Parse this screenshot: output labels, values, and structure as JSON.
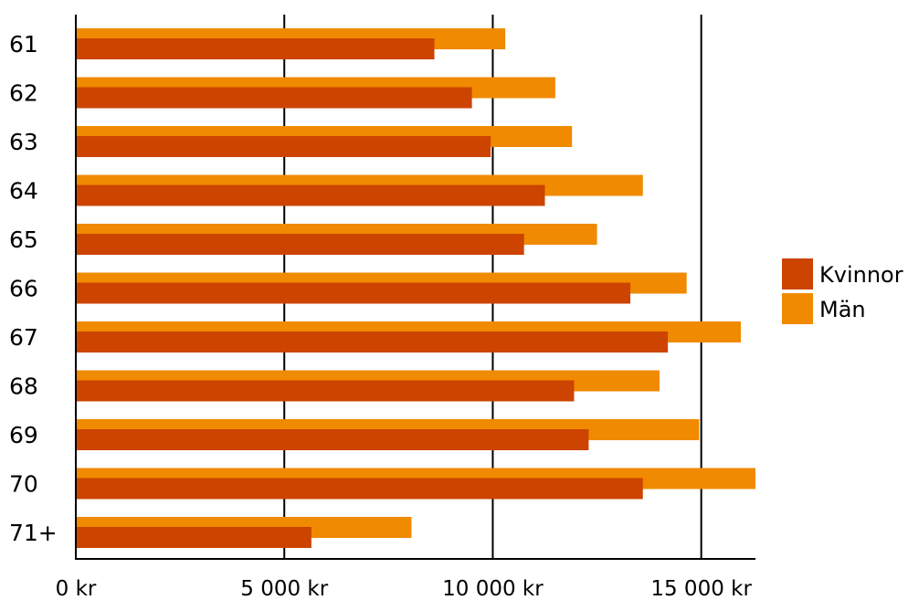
{
  "chart_data": {
    "type": "bar",
    "orientation": "horizontal",
    "categories": [
      "61",
      "62",
      "63",
      "64",
      "65",
      "66",
      "67",
      "68",
      "69",
      "70",
      "71+"
    ],
    "series": [
      {
        "name": "Kvinnor",
        "color": "#cc4400",
        "values": [
          8600,
          9500,
          9950,
          11250,
          10750,
          13300,
          14200,
          11950,
          12300,
          13600,
          5650
        ]
      },
      {
        "name": "Män",
        "color": "#f08a00",
        "values": [
          10300,
          11500,
          11900,
          13600,
          12500,
          14650,
          15950,
          14000,
          14950,
          16300,
          8050
        ]
      }
    ],
    "x_ticks": [
      {
        "value": 0,
        "label": "0 kr"
      },
      {
        "value": 5000,
        "label": "5 000 kr"
      },
      {
        "value": 10000,
        "label": "10 000 kr"
      },
      {
        "value": 15000,
        "label": "15 000 kr"
      }
    ],
    "xlim": [
      0,
      16300
    ],
    "grid": true,
    "legend_position": "right"
  }
}
